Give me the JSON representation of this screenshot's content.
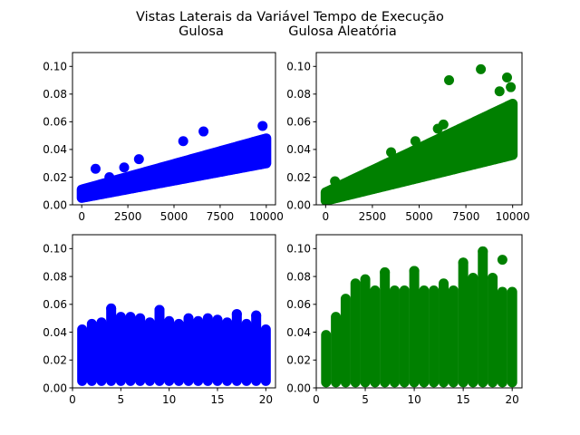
{
  "figure": {
    "title_line1": "Vistas Laterais da Variável Tempo de Execução",
    "title_line2_left": "Gulosa",
    "title_line2_right": "Gulosa Aleatória"
  },
  "colors": {
    "gulosa": "#0000ff",
    "aleatoria": "#008000"
  },
  "chart_data": [
    {
      "type": "scatter",
      "position": "top-left",
      "series_color": "blue",
      "xlim": [
        -500,
        10500
      ],
      "ylim": [
        0.0,
        0.11
      ],
      "xticks": [
        0,
        2500,
        5000,
        7500,
        10000
      ],
      "xtick_labels": [
        "0",
        "2500",
        "5000",
        "7500",
        "10000"
      ],
      "yticks": [
        0.0,
        0.02,
        0.04,
        0.06,
        0.08,
        0.1
      ],
      "ytick_labels": [
        "0.00",
        "0.02",
        "0.04",
        "0.06",
        "0.08",
        "0.10"
      ],
      "band_x": [
        0,
        10000
      ],
      "band_low": [
        0.005,
        0.03
      ],
      "band_high": [
        0.011,
        0.048
      ],
      "outliers": [
        [
          750,
          0.026
        ],
        [
          1500,
          0.02
        ],
        [
          2300,
          0.027
        ],
        [
          3100,
          0.033
        ],
        [
          5500,
          0.046
        ],
        [
          6600,
          0.053
        ],
        [
          9800,
          0.057
        ]
      ]
    },
    {
      "type": "scatter",
      "position": "top-right",
      "series_color": "green",
      "xlim": [
        -500,
        10500
      ],
      "ylim": [
        0.0,
        0.11
      ],
      "xticks": [
        0,
        2500,
        5000,
        7500,
        10000
      ],
      "xtick_labels": [
        "0",
        "2500",
        "5000",
        "7500",
        "10000"
      ],
      "yticks": [
        0.0,
        0.02,
        0.04,
        0.06,
        0.08,
        0.1
      ],
      "ytick_labels": [
        "0.00",
        "0.02",
        "0.04",
        "0.06",
        "0.08",
        "0.10"
      ],
      "band_x": [
        0,
        10000
      ],
      "band_low": [
        0.003,
        0.036
      ],
      "band_high": [
        0.009,
        0.073
      ],
      "outliers": [
        [
          500,
          0.017
        ],
        [
          3500,
          0.038
        ],
        [
          4800,
          0.046
        ],
        [
          6000,
          0.055
        ],
        [
          6300,
          0.058
        ],
        [
          6600,
          0.09
        ],
        [
          8300,
          0.098
        ],
        [
          9300,
          0.082
        ],
        [
          9700,
          0.092
        ],
        [
          9900,
          0.085
        ]
      ]
    },
    {
      "type": "scatter",
      "position": "bottom-left",
      "series_color": "blue",
      "xlim": [
        0,
        21
      ],
      "ylim": [
        0.0,
        0.11
      ],
      "xticks": [
        0,
        5,
        10,
        15,
        20
      ],
      "xtick_labels": [
        "0",
        "5",
        "10",
        "15",
        "20"
      ],
      "yticks": [
        0.0,
        0.02,
        0.04,
        0.06,
        0.08,
        0.1
      ],
      "ytick_labels": [
        "0.00",
        "0.02",
        "0.04",
        "0.06",
        "0.08",
        "0.10"
      ],
      "columns_x": [
        1,
        20
      ],
      "column_min": 0.005,
      "column_top": [
        0.042,
        0.046,
        0.047,
        0.057,
        0.051,
        0.051,
        0.05,
        0.047,
        0.056,
        0.048,
        0.046,
        0.05,
        0.048,
        0.05,
        0.049,
        0.047,
        0.053,
        0.046,
        0.052,
        0.042
      ],
      "outliers": [
        [
          4,
          0.057
        ],
        [
          9,
          0.056
        ],
        [
          17,
          0.053
        ],
        [
          19,
          0.052
        ]
      ]
    },
    {
      "type": "scatter",
      "position": "bottom-right",
      "series_color": "green",
      "xlim": [
        0,
        21
      ],
      "ylim": [
        0.0,
        0.11
      ],
      "xticks": [
        0,
        5,
        10,
        15,
        20
      ],
      "xtick_labels": [
        "0",
        "5",
        "10",
        "15",
        "20"
      ],
      "yticks": [
        0.0,
        0.02,
        0.04,
        0.06,
        0.08,
        0.1
      ],
      "ytick_labels": [
        "0.00",
        "0.02",
        "0.04",
        "0.06",
        "0.08",
        "0.10"
      ],
      "columns_x": [
        1,
        20
      ],
      "column_min": 0.004,
      "column_top": [
        0.038,
        0.051,
        0.064,
        0.075,
        0.078,
        0.07,
        0.083,
        0.07,
        0.07,
        0.084,
        0.07,
        0.07,
        0.075,
        0.07,
        0.09,
        0.079,
        0.098,
        0.079,
        0.069,
        0.069
      ],
      "outliers": [
        [
          7,
          0.083
        ],
        [
          10,
          0.084
        ],
        [
          15,
          0.09
        ],
        [
          16,
          0.079
        ],
        [
          17,
          0.098
        ],
        [
          18,
          0.079
        ],
        [
          19,
          0.092
        ]
      ]
    }
  ]
}
